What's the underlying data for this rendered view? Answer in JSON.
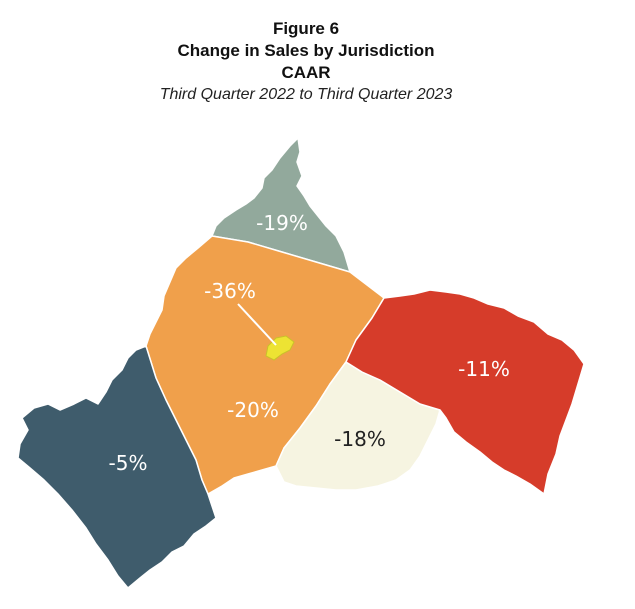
{
  "header": {
    "figure": "Figure 6",
    "title": "Change in Sales by Jurisdiction",
    "org": "CAAR",
    "subtitle": "Third Quarter 2022 to Third Quarter 2023"
  },
  "regions": [
    {
      "key": "north",
      "label": "-19%",
      "color": "#92a99c",
      "text_color": "#ffffff"
    },
    {
      "key": "central",
      "label": "-20%",
      "color": "#f0a04b",
      "text_color": "#ffffff"
    },
    {
      "key": "city",
      "label": "-36%",
      "color": "#ede333",
      "text_color": "#ffffff"
    },
    {
      "key": "east",
      "label": "-11%",
      "color": "#d63c2a",
      "text_color": "#ffffff"
    },
    {
      "key": "southeast",
      "label": "-18%",
      "color": "#f6f4e1",
      "text_color": "#222222"
    },
    {
      "key": "southwest",
      "label": "-5%",
      "color": "#3f5c6c",
      "text_color": "#ffffff"
    }
  ]
}
